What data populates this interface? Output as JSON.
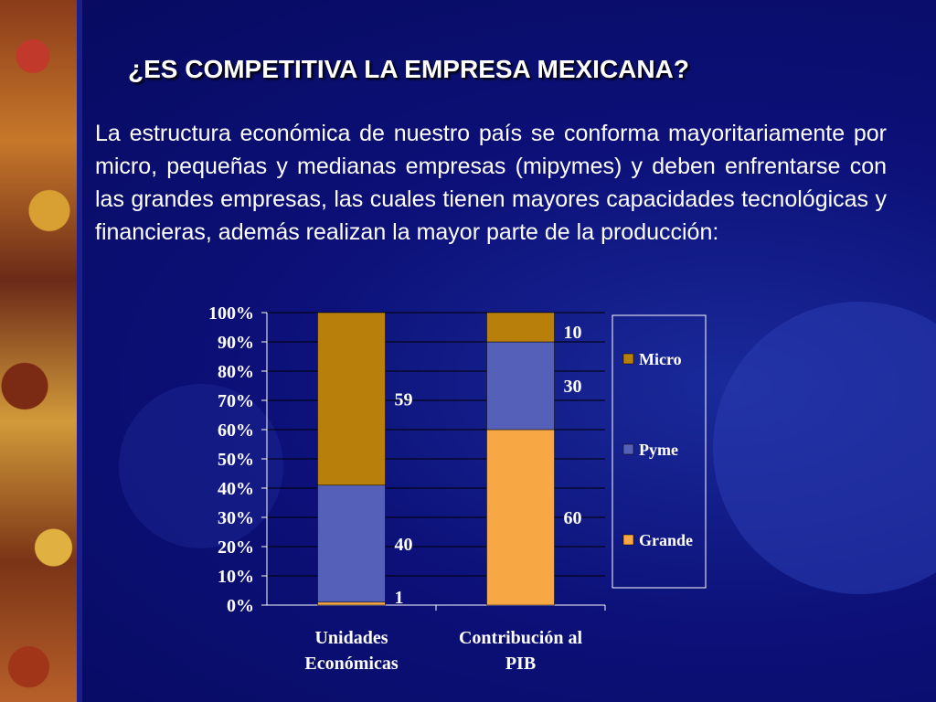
{
  "slide": {
    "title": "¿ES COMPETITIVA LA EMPRESA MEXICANA?",
    "body": "La estructura económica de nuestro país se conforma mayoritariamente por micro, pequeñas y medianas empresas (mipymes) y deben enfrentarse con las grandes empresas, las cuales tienen mayores capacidades tecnológicas y financieras, además realizan la mayor parte de la producción:"
  },
  "colors": {
    "background": "#0a0d6e",
    "Micro": "#b8800a",
    "Pyme": "#5561b8",
    "Grande": "#f7a845",
    "text": "#ffffff"
  },
  "chart_data": {
    "type": "bar",
    "stacked": "percent",
    "categories": [
      "Unidades Económicas",
      "Contribución al PIB"
    ],
    "category_lines": [
      [
        "Unidades",
        "Económicas"
      ],
      [
        "Contribución al",
        "PIB"
      ]
    ],
    "series": [
      {
        "name": "Grande",
        "values": [
          1,
          60
        ],
        "labels": [
          "1",
          "60"
        ]
      },
      {
        "name": "Pyme",
        "values": [
          40,
          30
        ],
        "labels": [
          "40",
          "30"
        ]
      },
      {
        "name": "Micro",
        "values": [
          59,
          10
        ],
        "labels": [
          "59",
          "10"
        ]
      }
    ],
    "legend": [
      "Micro",
      "Pyme",
      "Grande"
    ],
    "legend_position": "right",
    "ylim": [
      0,
      100
    ],
    "yticks": [
      "0%",
      "10%",
      "20%",
      "30%",
      "40%",
      "50%",
      "60%",
      "70%",
      "80%",
      "90%",
      "100%"
    ],
    "grid": true
  }
}
